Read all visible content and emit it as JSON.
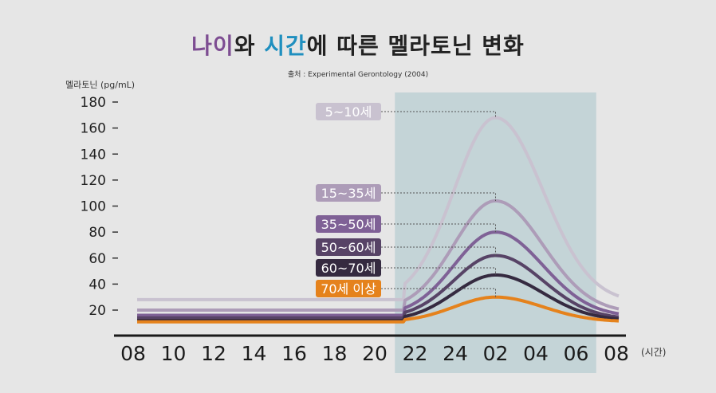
{
  "title": {
    "part1": "나이",
    "part2": "와 ",
    "part3": "시간",
    "part4": "에 따른 멜라토닌 변화"
  },
  "source": "출처 : Experimental Gerontology (2004)",
  "colors": {
    "background": "#e6e6e6",
    "night_band": "#c4d4d7",
    "title_age": "#7d4d92",
    "title_time": "#1f8fbf"
  },
  "chart_data": {
    "type": "line",
    "ylabel": "멜라토닌 (pg/mL)",
    "xunit": "(시간)",
    "ylim": [
      0,
      180
    ],
    "yticks": [
      20,
      40,
      60,
      80,
      100,
      120,
      140,
      160,
      180
    ],
    "x": [
      "08",
      "10",
      "12",
      "14",
      "16",
      "18",
      "20",
      "22",
      "24",
      "02",
      "04",
      "06",
      "08"
    ],
    "night_band": {
      "from": "21",
      "to": "07"
    },
    "peak_at": "02",
    "series": [
      {
        "name": "5~10세",
        "color": "#c9c2d0",
        "base": 28,
        "peak": 168,
        "end": 26
      },
      {
        "name": "15~35세",
        "color": "#ad9cb8",
        "base": 20,
        "peak": 104,
        "end": 18
      },
      {
        "name": "35~50세",
        "color": "#7f6196",
        "base": 16,
        "peak": 80,
        "end": 15
      },
      {
        "name": "50~60세",
        "color": "#574366",
        "base": 14,
        "peak": 62,
        "end": 13
      },
      {
        "name": "60~70세",
        "color": "#352a40",
        "base": 12,
        "peak": 47,
        "end": 12
      },
      {
        "name": "70세 이상",
        "color": "#e5821c",
        "base": 11,
        "peak": 30,
        "end": 11
      }
    ]
  }
}
